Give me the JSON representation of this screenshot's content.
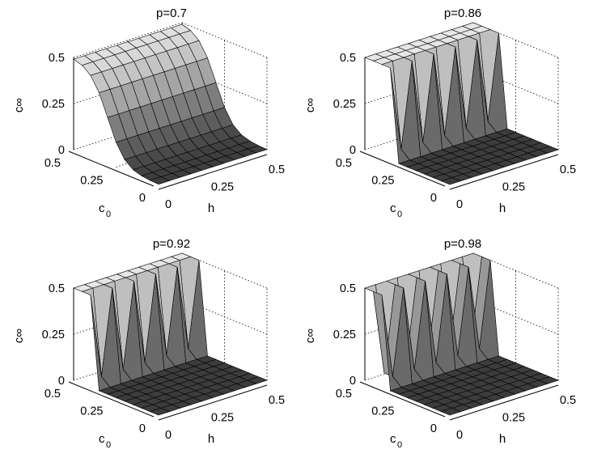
{
  "chart_data": [
    {
      "type": "surface3d",
      "title": "p=0.7",
      "xlabel": "h",
      "ylabel": "c_0",
      "zlabel": "c_∞",
      "x_ticks": [
        "0",
        "0.25",
        "0.5"
      ],
      "y_ticks": [
        "0",
        "0.25",
        "0.5"
      ],
      "z_ticks": [
        "0",
        "0.25",
        "0.5"
      ],
      "xlim": [
        0,
        0.5
      ],
      "ylim": [
        0,
        0.5
      ],
      "zlim": [
        0,
        0.5
      ],
      "grid": "on",
      "colormap": "gray",
      "x": [
        0,
        0.05,
        0.1,
        0.15,
        0.2,
        0.25,
        0.3,
        0.35,
        0.4,
        0.45,
        0.5
      ],
      "y": [
        0,
        0.05,
        0.1,
        0.15,
        0.2,
        0.25,
        0.3,
        0.35,
        0.4,
        0.45,
        0.5
      ],
      "transition_c0": 0.3,
      "step_width_c0": 0.05,
      "high_value": 0.5,
      "low_value": 0,
      "oscillating": false
    },
    {
      "type": "surface3d",
      "title": "p=0.86",
      "xlabel": "h",
      "ylabel": "c_0",
      "zlabel": "c_∞",
      "x_ticks": [
        "0",
        "0.25",
        "0.5"
      ],
      "y_ticks": [
        "0",
        "0.25",
        "0.5"
      ],
      "z_ticks": [
        "0",
        "0.25",
        "0.5"
      ],
      "xlim": [
        0,
        0.5
      ],
      "ylim": [
        0,
        0.5
      ],
      "zlim": [
        0,
        0.5
      ],
      "grid": "on",
      "colormap": "gray",
      "x": [
        0,
        0.05,
        0.1,
        0.15,
        0.2,
        0.25,
        0.3,
        0.35,
        0.4,
        0.45,
        0.5
      ],
      "y": [
        0,
        0.05,
        0.1,
        0.15,
        0.2,
        0.25,
        0.3,
        0.35,
        0.4,
        0.45,
        0.5
      ],
      "transition_c0": 0.38,
      "step_width_c0": 0.012,
      "high_value": 0.5,
      "low_value": 0,
      "oscillating": true
    },
    {
      "type": "surface3d",
      "title": "p=0.92",
      "xlabel": "h",
      "ylabel": "c_0",
      "zlabel": "c_∞",
      "x_ticks": [
        "0",
        "0.25",
        "0.5"
      ],
      "y_ticks": [
        "0",
        "0.25",
        "0.5"
      ],
      "z_ticks": [
        "0",
        "0.25",
        "0.5"
      ],
      "xlim": [
        0,
        0.5
      ],
      "ylim": [
        0,
        0.5
      ],
      "zlim": [
        0,
        0.5
      ],
      "grid": "on",
      "colormap": "gray",
      "x": [
        0,
        0.05,
        0.1,
        0.15,
        0.2,
        0.25,
        0.3,
        0.35,
        0.4,
        0.45,
        0.5
      ],
      "y": [
        0,
        0.05,
        0.1,
        0.15,
        0.2,
        0.25,
        0.3,
        0.35,
        0.4,
        0.45,
        0.5
      ],
      "transition_c0": 0.43,
      "step_width_c0": 0.012,
      "high_value": 0.5,
      "low_value": 0,
      "oscillating": true
    },
    {
      "type": "surface3d",
      "title": "p=0.98",
      "xlabel": "h",
      "ylabel": "c_0",
      "zlabel": "c_∞",
      "x_ticks": [
        "0",
        "0.25",
        "0.5"
      ],
      "y_ticks": [
        "0",
        "0.25",
        "0.5"
      ],
      "z_ticks": [
        "0",
        "0.25",
        "0.5"
      ],
      "xlim": [
        0,
        0.5
      ],
      "ylim": [
        0,
        0.5
      ],
      "zlim": [
        0,
        0.5
      ],
      "grid": "on",
      "colormap": "gray",
      "x": [
        0,
        0.05,
        0.1,
        0.15,
        0.2,
        0.25,
        0.3,
        0.35,
        0.4,
        0.45,
        0.5
      ],
      "y": [
        0,
        0.05,
        0.1,
        0.15,
        0.2,
        0.25,
        0.3,
        0.35,
        0.4,
        0.45,
        0.5
      ],
      "transition_c0": 0.475,
      "step_width_c0": 0.012,
      "high_value": 0.5,
      "low_value": 0,
      "oscillating": true
    }
  ]
}
